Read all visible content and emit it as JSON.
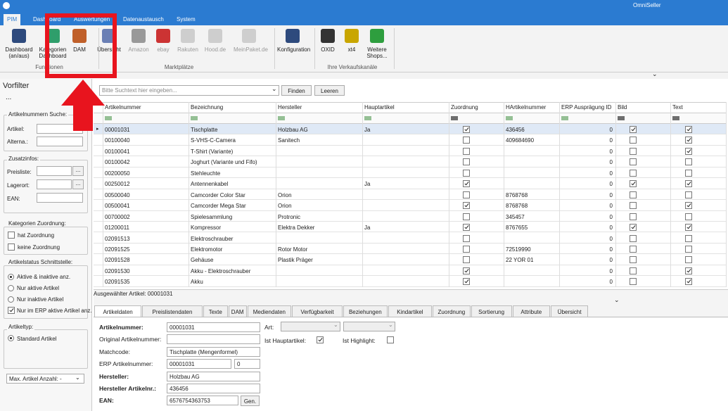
{
  "window": {
    "title": "OmniSeller"
  },
  "menu_tabs": [
    "PIM",
    "Dashboard",
    "Auswertungen",
    "Datenaustausch",
    "System"
  ],
  "ribbon": {
    "groups": [
      {
        "label": "Funktionen",
        "buttons": [
          "Dashboard (an/aus)",
          "Kategorien Dashboard",
          "DAM"
        ]
      },
      {
        "label": "Marktplätze",
        "buttons": [
          "Übersicht",
          "Amazon",
          "ebay",
          "Rakuten",
          "Hood.de",
          "MeinPaket.de"
        ]
      },
      {
        "buttons": [
          "Konfiguration"
        ]
      },
      {
        "label": "Ihre Verkaufskanäle",
        "buttons": [
          "OXID",
          "xt4",
          "Weitere Shops..."
        ]
      }
    ]
  },
  "filter": {
    "title": "Vorfilter",
    "more": "...",
    "article_search": {
      "title": "Artikelnummern Suche:",
      "fields": [
        "Artikel:",
        "Alterna.:"
      ]
    },
    "extra_info": {
      "title": "Zusatzinfos:",
      "fields": [
        "Preisliste:",
        "Lagerort:",
        "EAN:"
      ],
      "browse_button": "..."
    },
    "category": {
      "title": "Kategorien Zuordnung:",
      "options": [
        {
          "label": "hat Zuordnung",
          "checked": false
        },
        {
          "label": "keine Zuordnung",
          "checked": false
        }
      ]
    },
    "status": {
      "title": "Artikelstatus Schnittstelle:",
      "radios": [
        {
          "label": "Aktive & inaktive anz.",
          "selected": true
        },
        {
          "label": "Nur aktive Artikel",
          "selected": false
        },
        {
          "label": "Nur inaktive Artikel",
          "selected": false
        }
      ],
      "checkbox": {
        "label": "Nur im ERP aktive Artikel anz.",
        "checked": true
      }
    },
    "type": {
      "title": "Artikeltyp:",
      "radios": [
        {
          "label": "Standard Artikel",
          "selected": true
        }
      ]
    },
    "max_count": "Max. Artikel Anzahl: -"
  },
  "search": {
    "placeholder": "Bitte Suchtext hier eingeben...",
    "buttons": [
      "Finden",
      "Leeren"
    ]
  },
  "grid": {
    "columns": [
      "Artikelnummer",
      "Bezeichnung",
      "Hersteller",
      "Hauptartikel",
      "Zuordnung",
      "HArtikelnummer",
      "ERP Ausprägung ID",
      "Bild",
      "Text"
    ],
    "rows": [
      [
        "00001031",
        "Tischplatte",
        "Holzbau AG",
        "Ja",
        true,
        "436456",
        0,
        true,
        true
      ],
      [
        "00100040",
        "S-VHS-C-Camera",
        "Sanitech",
        null,
        false,
        "409684690",
        0,
        false,
        true
      ],
      [
        "00100041",
        "T-Shirt (Variante)",
        null,
        null,
        false,
        null,
        0,
        false,
        true
      ],
      [
        "00100042",
        "Joghurt (Variante und Fifo)",
        null,
        null,
        false,
        null,
        0,
        false,
        false
      ],
      [
        "00200050",
        "Stehleuchte",
        null,
        null,
        false,
        null,
        0,
        false,
        false
      ],
      [
        "00250012",
        "Antennenkabel",
        null,
        "Ja",
        true,
        null,
        0,
        true,
        true
      ],
      [
        "00500040",
        "Camcorder Color Star",
        "Orion",
        null,
        false,
        "8768768",
        0,
        false,
        false
      ],
      [
        "00500041",
        "Camcorder Mega Star",
        "Orion",
        null,
        true,
        "8768768",
        0,
        false,
        true
      ],
      [
        "00700002",
        "Spielesammlung",
        "Protronic",
        null,
        false,
        "345457",
        0,
        false,
        false
      ],
      [
        "01200011",
        "Kompressor",
        "Elektra Dekker",
        "Ja",
        true,
        "8767655",
        0,
        true,
        true
      ],
      [
        "02091513",
        "Elektroschrauber",
        null,
        null,
        false,
        null,
        0,
        false,
        false
      ],
      [
        "02091525",
        "Elektromotor",
        "Rotor Motor",
        null,
        false,
        "72519990",
        0,
        false,
        false
      ],
      [
        "02091528",
        "Gehäuse",
        "Plastik Präger",
        null,
        false,
        "22 YOR 01",
        0,
        false,
        false
      ],
      [
        "02091530",
        "Akku - Elektroschrauber",
        null,
        null,
        true,
        null,
        0,
        false,
        true
      ],
      [
        "02091535",
        "Akku",
        null,
        null,
        true,
        null,
        0,
        false,
        true
      ]
    ]
  },
  "status_bar": "Ausgewählter Artikel: 00001031",
  "detail": {
    "tabs": [
      "Artikeldaten",
      "Preislistendaten",
      "Texte",
      "DAM",
      "Mediendaten",
      "Verfügbarkeit",
      "Beziehungen",
      "Kindartikel",
      "Zuordnung",
      "Sortierung",
      "Attribute",
      "Übersicht"
    ],
    "fields": [
      {
        "label": "Artikelnummer:",
        "value": "00001031"
      },
      {
        "label": "Original Artikelnummer:",
        "value": null
      },
      {
        "label": "Matchcode:",
        "value": "Tischplatte (Mengenformel)"
      },
      {
        "label": "ERP Artikelnummer:",
        "value": "00001031",
        "extra": 0
      },
      {
        "label": "Hersteller:",
        "value": "Holzbau AG"
      },
      {
        "label": "Hersteller Artikelnr.:",
        "value": "436456"
      },
      {
        "label": "EAN:",
        "value": "6576754363753",
        "button": "Gen."
      }
    ],
    "right_fields": [
      {
        "label": "Art:"
      },
      {
        "label": "Ist Hauptartikel:",
        "checked": true
      },
      {
        "label": "Ist Highlight:",
        "checked": false
      }
    ]
  }
}
